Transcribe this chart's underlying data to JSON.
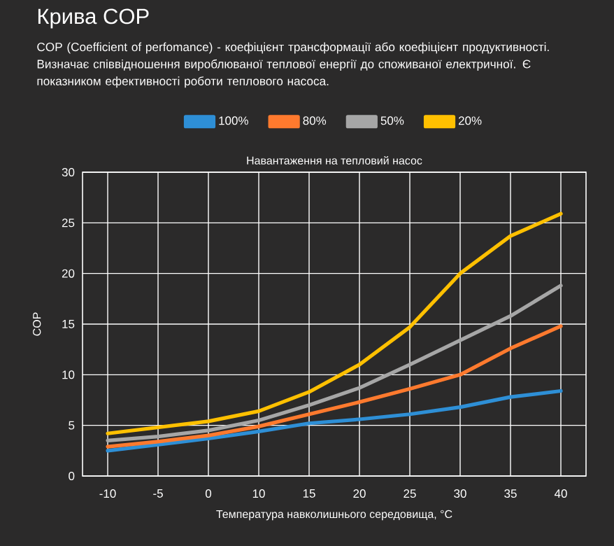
{
  "chart_data": {
    "type": "line",
    "title": "Крива COP",
    "subtitle": "COP (Coefficient of perfomance) - коефіцієнт трансформації або коефіцієнт продуктивності. Визначає співвідношення вироблюваної теплової енергії до споживаної електричної. Є показником ефективності роботи теплового насоса.",
    "legend_title": "Навантаження на тепловий насос",
    "xlabel": "Температура навколишнього середовища, °C",
    "ylabel": "COP",
    "categories": [
      "-10",
      "-5",
      "0",
      "10",
      "15",
      "20",
      "25",
      "30",
      "35",
      "40"
    ],
    "series": [
      {
        "name": "100%",
        "color": "#2e8fd6",
        "values": [
          2.5,
          3.1,
          3.7,
          4.4,
          5.2,
          5.6,
          6.1,
          6.8,
          7.8,
          8.4
        ]
      },
      {
        "name": "80%",
        "color": "#ff7a2e",
        "values": [
          2.9,
          3.4,
          4.0,
          4.9,
          6.1,
          7.3,
          8.6,
          10.0,
          12.6,
          14.8
        ]
      },
      {
        "name": "50%",
        "color": "#a6a6a6",
        "values": [
          3.5,
          3.9,
          4.5,
          5.5,
          7.0,
          8.7,
          11.0,
          13.4,
          15.8,
          18.8
        ]
      },
      {
        "name": "20%",
        "color": "#ffc000",
        "values": [
          4.2,
          4.8,
          5.4,
          6.4,
          8.3,
          11.0,
          14.7,
          20.0,
          23.7,
          25.9
        ]
      }
    ],
    "ylim": [
      0,
      30
    ],
    "yticks": [
      0,
      5,
      10,
      15,
      20,
      25,
      30
    ],
    "grid": true,
    "legend": "top"
  }
}
